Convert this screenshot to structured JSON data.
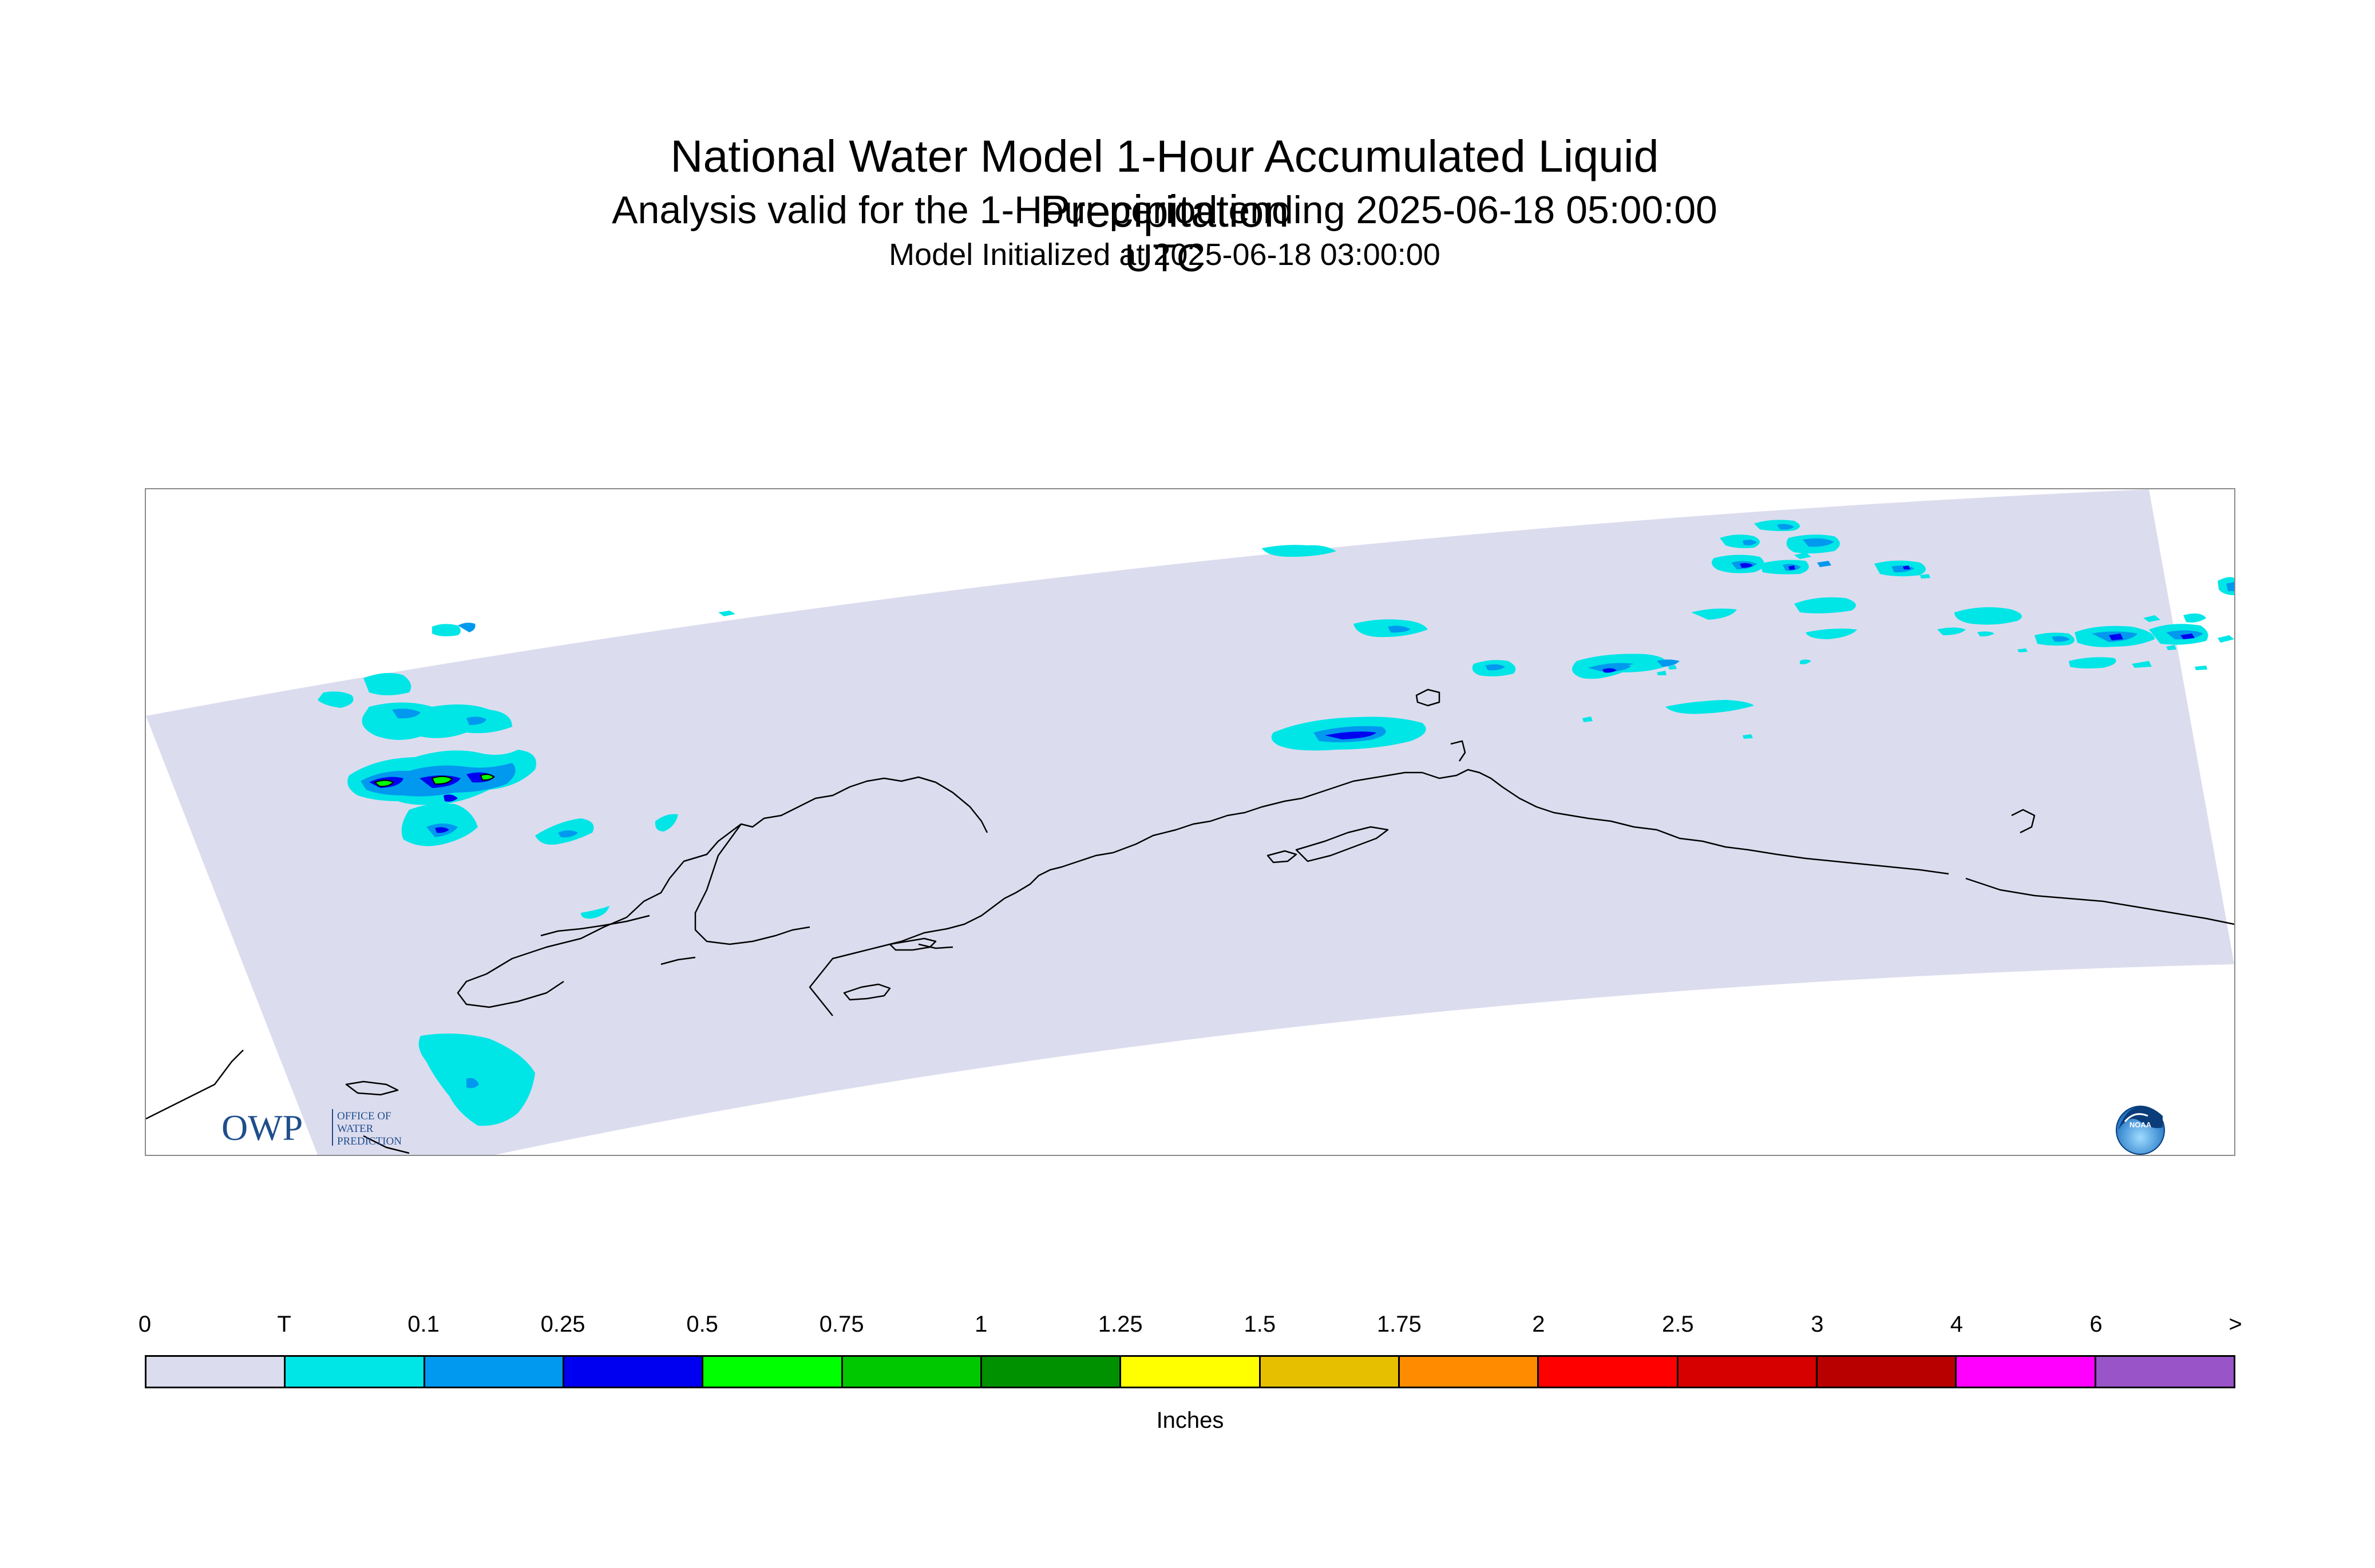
{
  "header": {
    "title": "National Water Model 1-Hour Accumulated Liquid Precipitation",
    "subtitle": "Analysis valid for the 1-Hour period ending 2025-06-18 05:00:00 UTC",
    "init_line": "Model Initialized at 2025-06-18 03:00:00"
  },
  "map": {
    "background_color": "#dcdcef",
    "coastline_color": "#000000",
    "logos": {
      "owp": {
        "letters": "OWP",
        "line1": "OFFICE OF",
        "line2": "WATER",
        "line3": "PREDICTION",
        "color": "#1f4e8c"
      },
      "noaa": {
        "letters": "NOAA",
        "color": "#1a6fc2"
      }
    }
  },
  "legend": {
    "tick_labels": [
      "0",
      "T",
      "0.1",
      "0.25",
      "0.5",
      "0.75",
      "1",
      "1.25",
      "1.5",
      "1.75",
      "2",
      "2.5",
      "3",
      "4",
      "6",
      ">"
    ],
    "colors": [
      "#dcdcef",
      "#00e6e6",
      "#0099ef",
      "#0000f0",
      "#00ff00",
      "#00c800",
      "#009100",
      "#ffff00",
      "#e6c000",
      "#ff8c00",
      "#ff0000",
      "#d70000",
      "#b90000",
      "#ff00ff",
      "#9955c8"
    ],
    "units_label": "Inches"
  }
}
